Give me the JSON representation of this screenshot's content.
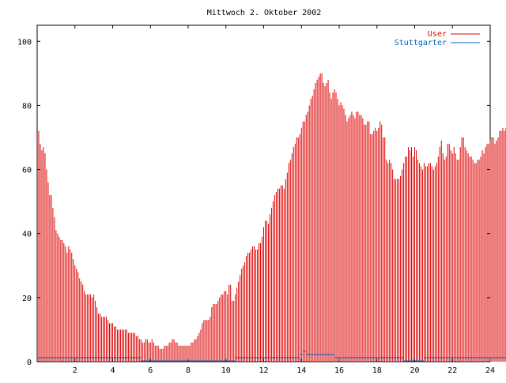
{
  "chart_data": {
    "type": "bar",
    "title": "Mittwoch 2. Oktober 2002",
    "xlabel": "",
    "ylabel": "",
    "xlim": [
      0,
      24
    ],
    "ylim": [
      0,
      105
    ],
    "x_ticks": [
      2,
      4,
      6,
      8,
      10,
      12,
      14,
      16,
      18,
      20,
      22,
      24
    ],
    "y_ticks": [
      0,
      20,
      40,
      60,
      80,
      100
    ],
    "grid": false,
    "legend_position": "top-right",
    "interval_minutes": 5,
    "series": [
      {
        "name": "User",
        "color": "#dd0000",
        "values": [
          72,
          68,
          66,
          67,
          65,
          60,
          56,
          52,
          52,
          48,
          45,
          41,
          40,
          39,
          38,
          38,
          37,
          36,
          34,
          36,
          35,
          34,
          32,
          30,
          29,
          28,
          26,
          25,
          24,
          22,
          21,
          21,
          21,
          21,
          20,
          21,
          19,
          17,
          15,
          15,
          14,
          14,
          14,
          14,
          13,
          12,
          12,
          12,
          11,
          11,
          10,
          10,
          10,
          10,
          10,
          10,
          10,
          9,
          9,
          9,
          9,
          9,
          8,
          8,
          7,
          7,
          6,
          6,
          7,
          7,
          6,
          6,
          7,
          6,
          5,
          5,
          5,
          4,
          4,
          4,
          5,
          5,
          5,
          6,
          6,
          7,
          7,
          6,
          6,
          5,
          5,
          5,
          5,
          5,
          5,
          5,
          5,
          6,
          6,
          7,
          7,
          8,
          9,
          10,
          12,
          13,
          13,
          13,
          13,
          14,
          17,
          18,
          18,
          18,
          19,
          20,
          21,
          21,
          22,
          22,
          21,
          24,
          24,
          19,
          19,
          21,
          23,
          25,
          27,
          29,
          30,
          31,
          33,
          34,
          34,
          35,
          36,
          36,
          35,
          35,
          37,
          37,
          39,
          42,
          44,
          44,
          43,
          46,
          48,
          50,
          52,
          53,
          54,
          54,
          55,
          55,
          54,
          57,
          59,
          62,
          63,
          65,
          67,
          68,
          70,
          70,
          71,
          73,
          75,
          75,
          77,
          78,
          80,
          82,
          83,
          85,
          87,
          88,
          89,
          90,
          90,
          87,
          86,
          87,
          88,
          84,
          82,
          84,
          85,
          84,
          82,
          80,
          81,
          80,
          79,
          77,
          75,
          76,
          77,
          78,
          77,
          76,
          78,
          78,
          77,
          77,
          76,
          74,
          74,
          75,
          75,
          71,
          71,
          72,
          73,
          72,
          73,
          75,
          74,
          70,
          70,
          63,
          62,
          63,
          62,
          60,
          57,
          57,
          57,
          57,
          58,
          60,
          62,
          64,
          64,
          67,
          66,
          67,
          64,
          67,
          66,
          63,
          62,
          61,
          60,
          62,
          61,
          61,
          62,
          62,
          61,
          60,
          61,
          62,
          64,
          67,
          69,
          65,
          63,
          64,
          68,
          68,
          66,
          65,
          67,
          65,
          63,
          63,
          67,
          70,
          70,
          67,
          66,
          65,
          64,
          64,
          63,
          62,
          62,
          63,
          63,
          64,
          66,
          65,
          67,
          68,
          68,
          69,
          70,
          70,
          68,
          69,
          70,
          72,
          72,
          73,
          72,
          73,
          74,
          77,
          78,
          77,
          76,
          78,
          79,
          78,
          78,
          78,
          79
        ]
      },
      {
        "name": "Stuttgarter",
        "color": "#0066bb",
        "values": [
          1,
          1,
          1,
          1,
          1,
          1,
          1,
          1,
          1,
          1,
          1,
          1,
          1,
          1,
          1,
          1,
          1,
          1,
          1,
          1,
          1,
          1,
          1,
          1,
          1,
          1,
          1,
          1,
          1,
          1,
          1,
          1,
          1,
          1,
          1,
          1,
          1,
          1,
          1,
          1,
          1,
          1,
          1,
          1,
          1,
          1,
          1,
          1,
          1,
          1,
          1,
          1,
          1,
          1,
          1,
          1,
          1,
          1,
          1,
          1,
          1,
          1,
          1,
          1,
          1,
          1,
          0,
          0,
          0,
          0,
          0,
          0,
          0,
          0,
          0,
          0,
          0,
          0,
          0,
          0,
          0,
          0,
          0,
          0,
          0,
          0,
          0,
          0,
          0,
          0,
          0,
          0,
          0,
          0,
          0,
          0,
          0,
          0,
          0,
          0,
          0,
          0,
          0,
          0,
          0,
          0,
          0,
          0,
          0,
          0,
          0,
          0,
          0,
          0,
          0,
          0,
          0,
          0,
          0,
          0,
          0,
          0,
          0,
          0,
          0,
          0,
          1,
          1,
          1,
          1,
          1,
          1,
          1,
          1,
          1,
          1,
          1,
          1,
          1,
          1,
          1,
          1,
          1,
          1,
          1,
          1,
          1,
          1,
          1,
          1,
          1,
          1,
          1,
          1,
          1,
          1,
          1,
          1,
          1,
          1,
          1,
          1,
          1,
          1,
          1,
          1,
          1,
          2,
          2,
          3,
          3,
          2,
          2,
          2,
          2,
          2,
          2,
          2,
          2,
          2,
          2,
          2,
          2,
          2,
          2,
          2,
          2,
          2,
          2,
          1,
          1,
          1,
          1,
          1,
          1,
          1,
          1,
          1,
          1,
          1,
          1,
          1,
          1,
          1,
          1,
          1,
          1,
          1,
          1,
          1,
          1,
          1,
          1,
          1,
          1,
          1,
          1,
          1,
          1,
          1,
          1,
          1,
          1,
          1,
          1,
          1,
          1,
          1,
          1,
          1,
          1,
          1,
          1,
          0,
          0,
          0,
          0,
          0,
          0,
          0,
          0,
          0,
          0,
          0,
          0,
          0,
          1,
          1,
          1,
          1,
          1,
          1,
          1,
          1,
          1,
          1,
          1,
          1,
          1,
          1,
          1,
          1,
          1,
          1,
          1,
          1,
          1,
          1,
          1,
          1,
          1,
          1,
          1,
          1,
          1,
          1,
          1,
          1,
          1,
          1,
          1,
          1,
          1,
          1,
          1,
          1,
          1,
          1,
          1,
          1,
          1,
          1,
          1,
          1,
          1,
          1,
          1,
          1,
          1,
          1,
          1,
          1,
          1,
          1,
          1,
          1,
          1,
          1,
          1,
          1,
          1
        ]
      }
    ]
  }
}
